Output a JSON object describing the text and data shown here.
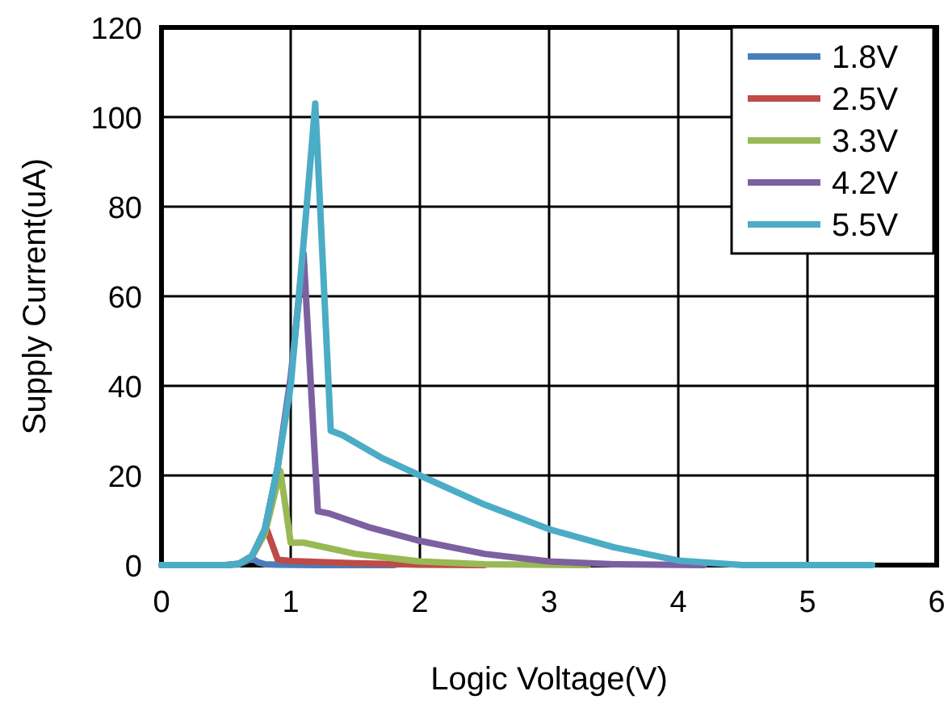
{
  "chart_data": {
    "type": "line",
    "xlabel": "Logic Voltage(V)",
    "ylabel": "Supply Current(uA)",
    "xlim": [
      0,
      6
    ],
    "ylim": [
      0,
      120
    ],
    "xticks": [
      0,
      1,
      2,
      3,
      4,
      5,
      6
    ],
    "yticks": [
      0,
      20,
      40,
      60,
      80,
      100,
      120
    ],
    "grid": true,
    "legend": "top right",
    "marker": "none",
    "line_style": "solid",
    "series": [
      {
        "name": "1.8V",
        "color": "#4a7ebb",
        "x": [
          0,
          0.5,
          0.6,
          0.65,
          0.7,
          0.75,
          0.8,
          0.9,
          1.2,
          1.8
        ],
        "values": [
          0,
          0,
          0.2,
          0.8,
          1.5,
          0.6,
          0.2,
          0.1,
          0,
          0
        ]
      },
      {
        "name": "2.5V",
        "color": "#be4b48",
        "x": [
          0.6,
          0.7,
          0.75,
          0.81,
          0.9,
          1.0,
          1.5,
          2.0,
          2.5
        ],
        "values": [
          0.3,
          2,
          4.5,
          8.3,
          1.2,
          0.9,
          0.4,
          0.1,
          0
        ]
      },
      {
        "name": "3.3V",
        "color": "#98b954",
        "x": [
          0.6,
          0.7,
          0.8,
          0.92,
          1.0,
          1.1,
          1.5,
          2.0,
          2.5,
          3.3
        ],
        "values": [
          0.3,
          2,
          7,
          21,
          5,
          5,
          2.5,
          0.8,
          0.2,
          0
        ]
      },
      {
        "name": "4.2V",
        "color": "#7d60a0",
        "x": [
          0,
          0.5,
          0.6,
          0.7,
          0.8,
          0.9,
          1.0,
          1.1,
          1.21,
          1.3,
          1.6,
          2.0,
          2.5,
          3.0,
          3.5,
          4.2
        ],
        "values": [
          0,
          0,
          0.3,
          2,
          8,
          22,
          42,
          69.5,
          12,
          11.5,
          8.5,
          5.4,
          2.5,
          0.8,
          0.2,
          0
        ]
      },
      {
        "name": "5.5V",
        "color": "#4bacc6",
        "x": [
          0,
          0.5,
          0.6,
          0.7,
          0.8,
          0.9,
          1.0,
          1.1,
          1.19,
          1.31,
          1.4,
          1.7,
          2.0,
          2.5,
          3.0,
          3.5,
          4.0,
          4.5,
          5.5
        ],
        "values": [
          0,
          0,
          0.3,
          2,
          8,
          22,
          40,
          72,
          103,
          30,
          29,
          24,
          20,
          13.5,
          8,
          4,
          1,
          0,
          0
        ]
      }
    ]
  }
}
